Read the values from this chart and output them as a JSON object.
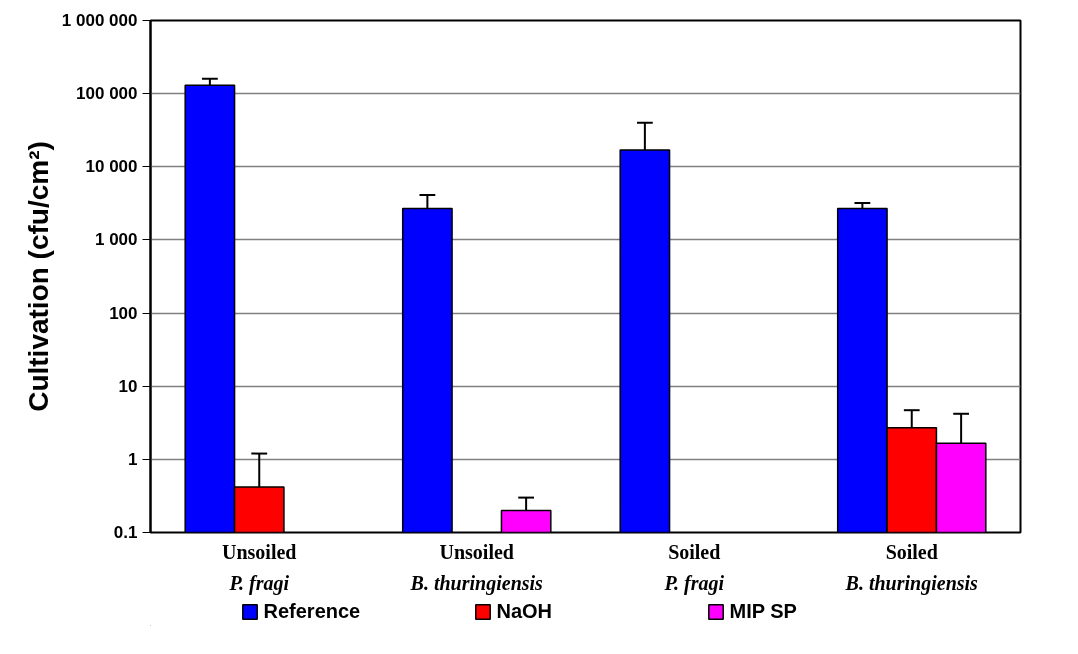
{
  "chart_data": {
    "type": "bar",
    "ylabel": "Cultivation (cfu/cm²)",
    "categories": [
      "Unsoiled\nP. fragi",
      "Unsoiled\nB. thuringiensis",
      "Soiled\nP. fragi",
      "Soiled\nB. thuringiensis"
    ],
    "series": [
      {
        "name": "Reference",
        "color": "#0000ff",
        "values": [
          130000,
          2700,
          17000,
          2700
        ],
        "errors": [
          [
            130000,
            160000
          ],
          [
            2700,
            4100
          ],
          [
            17000,
            40000
          ],
          [
            2700,
            3200
          ]
        ]
      },
      {
        "name": "NaOH",
        "color": "#ff0000",
        "values": [
          0.42,
          null,
          null,
          2.7
        ],
        "errors": [
          [
            0.42,
            1.2
          ],
          null,
          null,
          [
            2.7,
            4.7
          ]
        ]
      },
      {
        "name": "MIP SP",
        "color": "#ff00ff",
        "values": [
          null,
          0.2,
          null,
          1.66
        ],
        "errors": [
          null,
          [
            0.2,
            0.3
          ],
          null,
          [
            1.66,
            4.2
          ]
        ]
      }
    ],
    "log": true,
    "ylim": [
      0.1,
      1000000
    ],
    "yticks": [
      0.1,
      1,
      10,
      100,
      {
        "value": 1000,
        "label": "1 000"
      },
      {
        "value": 10000,
        "label": "10 000"
      },
      {
        "value": 100000,
        "label": "100 000"
      },
      {
        "value": 1000000,
        "label": "1 000 000"
      }
    ],
    "grid": "y",
    "legend": "bottom"
  }
}
